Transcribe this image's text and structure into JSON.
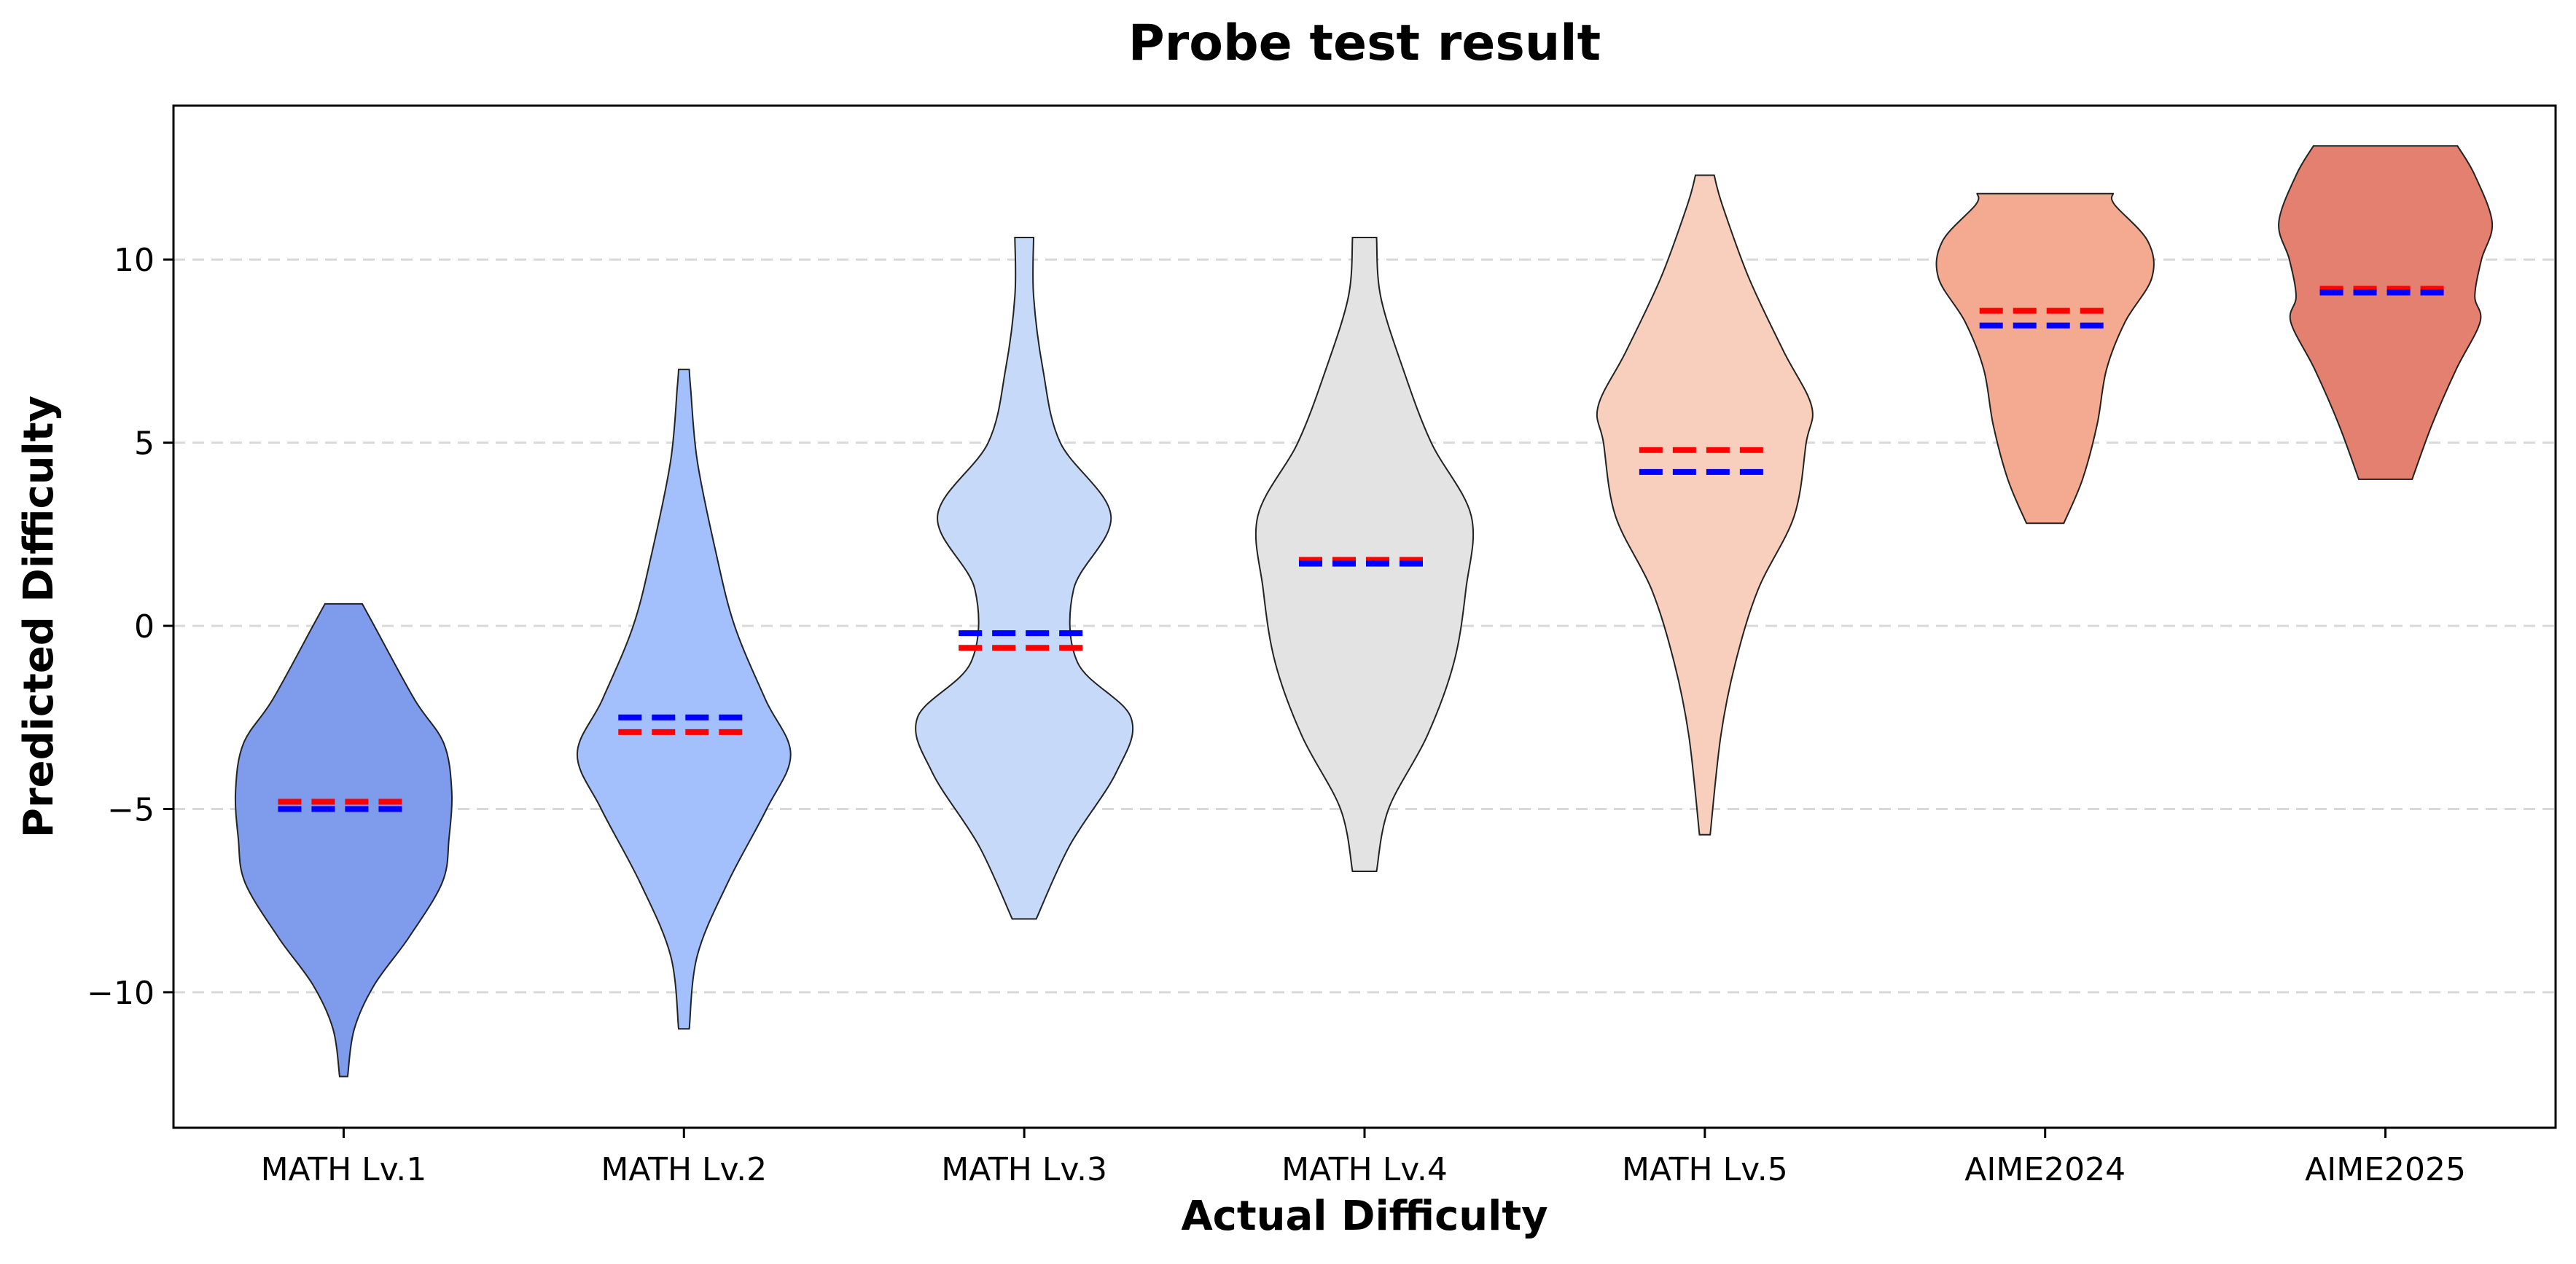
{
  "chart_data": {
    "type": "violin",
    "title": "Probe test result",
    "xlabel": "Actual Difficulty",
    "ylabel": "Predicted Difficulty",
    "ylim": [
      -13.7,
      14.2
    ],
    "yticks": [
      -10,
      -5,
      0,
      5,
      10
    ],
    "ytick_labels": [
      "−10",
      "−5",
      "0",
      "5",
      "10"
    ],
    "grid": "horizontal dashed",
    "categories": [
      "MATH Lv.1",
      "MATH Lv.2",
      "MATH Lv.3",
      "MATH Lv.4",
      "MATH Lv.5",
      "AIME2024",
      "AIME2025"
    ],
    "colors": [
      "#7f9cec",
      "#a3bffc",
      "#c7d9f8",
      "#e3e3e3",
      "#f7cfbc",
      "#f4aa90",
      "#e3806f"
    ],
    "mean_color": "#ff0000",
    "median_color": "#0000ff",
    "series": [
      {
        "name": "MATH Lv.1",
        "min": -12.3,
        "max": 0.6,
        "mean": -4.8,
        "median": -5.0,
        "profile": [
          [
            -12.3,
            0.03
          ],
          [
            -11.0,
            0.08
          ],
          [
            -9.8,
            0.23
          ],
          [
            -8.5,
            0.49
          ],
          [
            -7.0,
            0.74
          ],
          [
            -5.8,
            0.79
          ],
          [
            -4.5,
            0.81
          ],
          [
            -3.2,
            0.75
          ],
          [
            -2.0,
            0.53
          ],
          [
            0.0,
            0.23
          ],
          [
            0.6,
            0.14
          ]
        ]
      },
      {
        "name": "MATH Lv.2",
        "min": -11.0,
        "max": 7.0,
        "mean": -2.9,
        "median": -2.5,
        "profile": [
          [
            -11.0,
            0.04
          ],
          [
            -9.0,
            0.1
          ],
          [
            -7.0,
            0.33
          ],
          [
            -5.0,
            0.62
          ],
          [
            -3.5,
            0.8
          ],
          [
            -2.0,
            0.61
          ],
          [
            0.0,
            0.38
          ],
          [
            2.0,
            0.24
          ],
          [
            4.5,
            0.1
          ],
          [
            6.5,
            0.05
          ],
          [
            7.0,
            0.04
          ]
        ]
      },
      {
        "name": "MATH Lv.3",
        "min": -8.0,
        "max": 10.6,
        "mean": -0.6,
        "median": -0.2,
        "profile": [
          [
            -8.0,
            0.09
          ],
          [
            -6.0,
            0.34
          ],
          [
            -4.0,
            0.69
          ],
          [
            -2.5,
            0.8
          ],
          [
            -1.0,
            0.4
          ],
          [
            1.0,
            0.37
          ],
          [
            3.0,
            0.65
          ],
          [
            5.0,
            0.27
          ],
          [
            7.0,
            0.14
          ],
          [
            9.0,
            0.07
          ],
          [
            10.6,
            0.07
          ]
        ]
      },
      {
        "name": "MATH Lv.4",
        "min": -6.7,
        "max": 10.6,
        "mean": 1.8,
        "median": 1.7,
        "profile": [
          [
            -6.7,
            0.09
          ],
          [
            -5.0,
            0.18
          ],
          [
            -3.0,
            0.47
          ],
          [
            -1.0,
            0.67
          ],
          [
            1.0,
            0.76
          ],
          [
            3.0,
            0.8
          ],
          [
            5.0,
            0.5
          ],
          [
            7.0,
            0.29
          ],
          [
            9.0,
            0.12
          ],
          [
            10.6,
            0.09
          ]
        ]
      },
      {
        "name": "MATH Lv.5",
        "min": -5.7,
        "max": 12.3,
        "mean": 4.8,
        "median": 4.2,
        "profile": [
          [
            -5.7,
            0.04
          ],
          [
            -3.0,
            0.12
          ],
          [
            -1.0,
            0.23
          ],
          [
            1.0,
            0.4
          ],
          [
            3.0,
            0.67
          ],
          [
            5.0,
            0.76
          ],
          [
            6.0,
            0.8
          ],
          [
            7.5,
            0.59
          ],
          [
            9.5,
            0.33
          ],
          [
            11.5,
            0.13
          ],
          [
            12.3,
            0.07
          ]
        ]
      },
      {
        "name": "AIME2024",
        "min": 2.8,
        "max": 11.8,
        "mean": 8.6,
        "median": 8.2,
        "profile": [
          [
            2.8,
            0.14
          ],
          [
            4.0,
            0.28
          ],
          [
            5.5,
            0.39
          ],
          [
            7.0,
            0.46
          ],
          [
            8.3,
            0.6
          ],
          [
            9.5,
            0.8
          ],
          [
            10.5,
            0.77
          ],
          [
            11.5,
            0.52
          ],
          [
            11.8,
            0.51
          ]
        ]
      },
      {
        "name": "AIME2025",
        "min": 4.0,
        "max": 13.1,
        "mean": 9.2,
        "median": 9.1,
        "profile": [
          [
            4.0,
            0.2
          ],
          [
            5.5,
            0.35
          ],
          [
            7.0,
            0.53
          ],
          [
            8.3,
            0.71
          ],
          [
            9.0,
            0.67
          ],
          [
            10.0,
            0.72
          ],
          [
            11.0,
            0.8
          ],
          [
            12.3,
            0.67
          ],
          [
            13.1,
            0.54
          ]
        ]
      }
    ]
  }
}
